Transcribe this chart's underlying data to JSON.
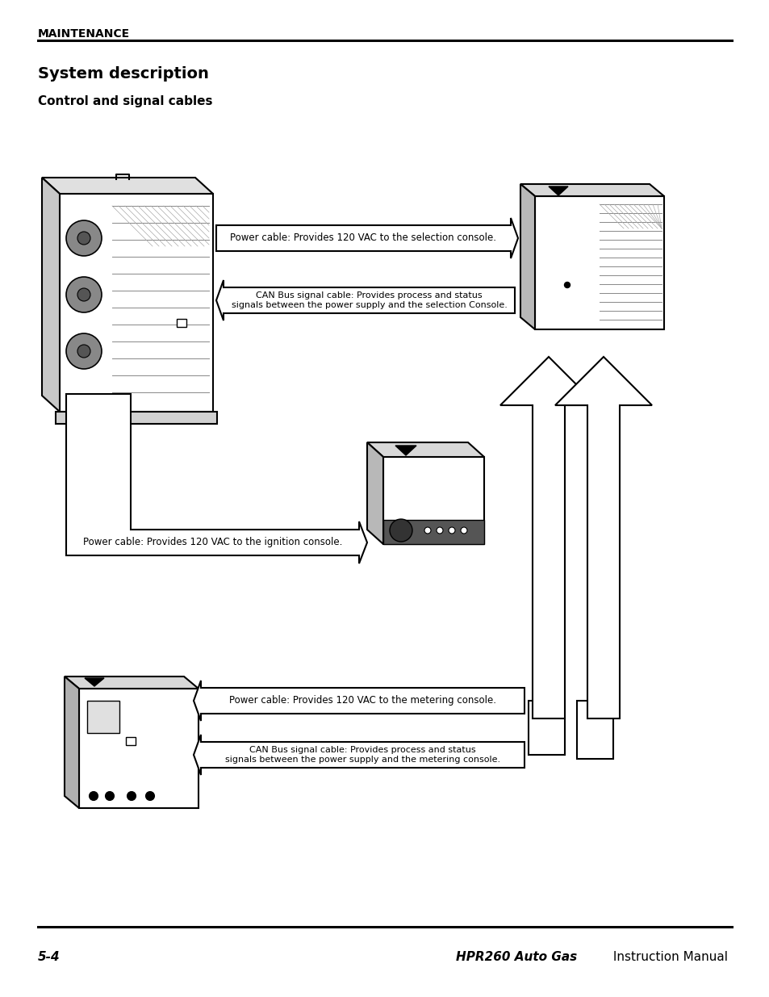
{
  "title_header": "MAINTENANCE",
  "section_title": "System description",
  "subsection_title": "Control and signal cables",
  "footer_left": "5-4",
  "footer_right_bold": "HPR260 Auto Gas",
  "footer_right_normal": " Instruction Manual",
  "bg_color": "#ffffff",
  "text_color": "#000000",
  "arrow1_label": "Power cable: Provides 120 VAC to the selection console.",
  "arrow2_label": "CAN Bus signal cable: Provides process and status\nsignals between the power supply and the selection Console.",
  "arrow3_label": "Power cable: Provides 120 VAC to the ignition console.",
  "arrow4_label": "Power cable: Provides 120 VAC to the metering console.",
  "arrow5_label": "CAN Bus signal cable: Provides process and status\nsignals between the power supply and the metering console."
}
